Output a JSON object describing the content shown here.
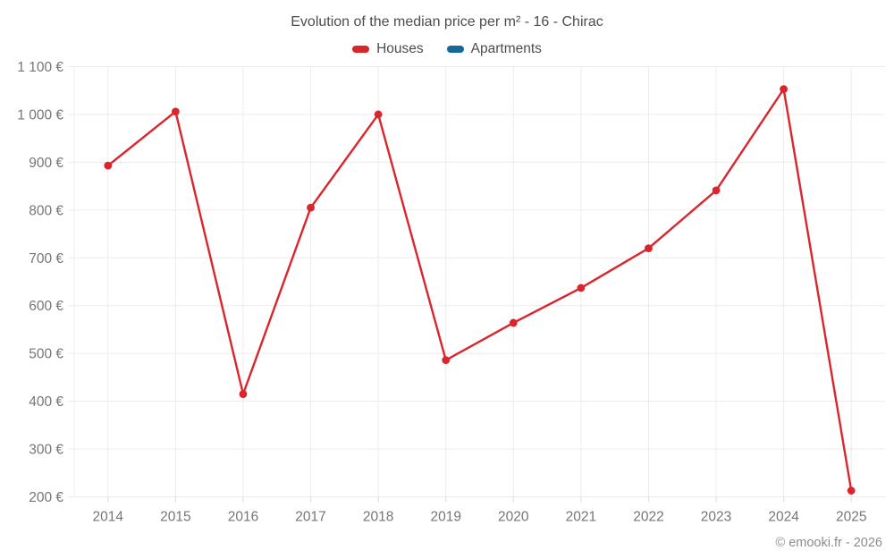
{
  "header": {
    "title": "Evolution of the median price per m² - 16 - Chirac"
  },
  "legend": {
    "items": [
      {
        "label": "Houses",
        "color": "#d9262c"
      },
      {
        "label": "Apartments",
        "color": "#16689b"
      }
    ]
  },
  "footer": {
    "credit": "© emooki.fr - 2026"
  },
  "colors": {
    "houses": "#d9262c",
    "apartments": "#16689b",
    "gridline": "#ececec",
    "tick": "#dcdcdc",
    "axis_label": "#767676",
    "title_text": "#4d4d4d"
  },
  "chart_data": {
    "type": "line",
    "title": "Evolution of the median price per m² - 16 - Chirac",
    "categories": [
      "2014",
      "2015",
      "2016",
      "2017",
      "2018",
      "2019",
      "2020",
      "2021",
      "2022",
      "2023",
      "2024",
      "2025"
    ],
    "series": [
      {
        "name": "Houses",
        "color": "#d9262c",
        "values": [
          893,
          1006,
          415,
          805,
          1000,
          486,
          564,
          637,
          720,
          841,
          1053,
          213
        ]
      },
      {
        "name": "Apartments",
        "color": "#16689b",
        "values": []
      }
    ],
    "xlabel": "",
    "ylabel": "",
    "ylim": [
      200,
      1100
    ],
    "y_ticks": [
      200,
      300,
      400,
      500,
      600,
      700,
      800,
      900,
      1000,
      1100
    ],
    "y_tick_labels": [
      "200 €",
      "300 €",
      "400 €",
      "500 €",
      "600 €",
      "700 €",
      "800 €",
      "900 €",
      "1 000 €",
      "1 100 €"
    ],
    "grid": true,
    "legend_position": "top"
  }
}
